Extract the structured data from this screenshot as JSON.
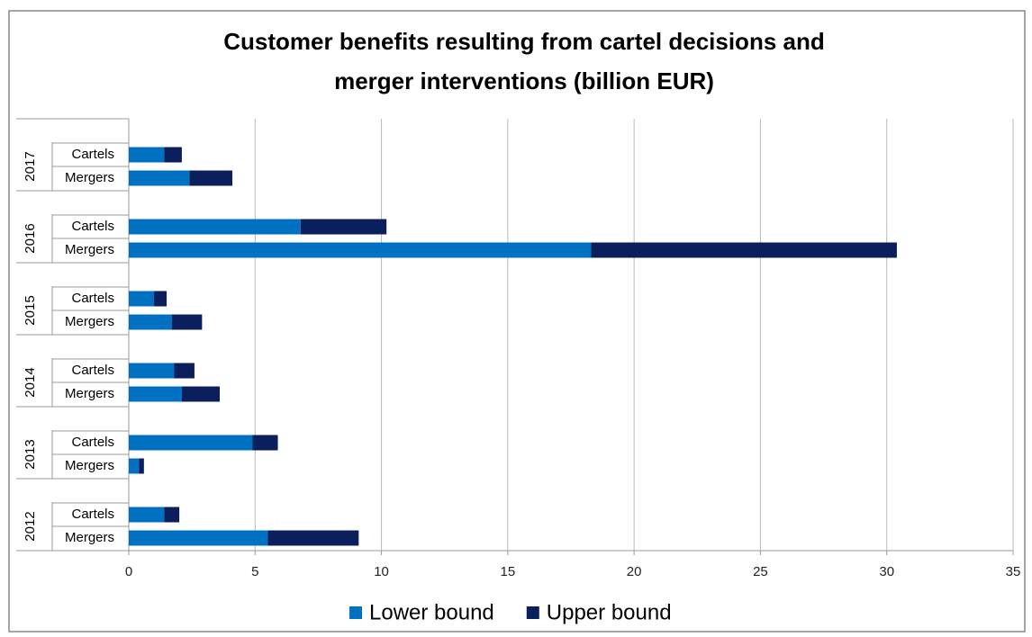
{
  "chart_data": {
    "type": "bar",
    "orientation": "horizontal",
    "stacked": true,
    "title": [
      "Customer benefits resulting from cartel decisions and",
      "merger interventions (billion EUR)"
    ],
    "groups": [
      "2017",
      "2016",
      "2015",
      "2014",
      "2013",
      "2012"
    ],
    "categories": [
      "Cartels",
      "Mergers",
      "Cartels",
      "Mergers",
      "Cartels",
      "Mergers",
      "Cartels",
      "Mergers",
      "Cartels",
      "Mergers",
      "Cartels",
      "Mergers"
    ],
    "series": [
      {
        "name": "Lower bound",
        "color": "#0070c0",
        "values": [
          1.4,
          2.4,
          6.8,
          18.3,
          1.0,
          1.7,
          1.8,
          2.1,
          4.9,
          0.4,
          1.4,
          5.5
        ]
      },
      {
        "name": "Upper bound",
        "color": "#0a1f5c",
        "values": [
          0.7,
          1.7,
          3.4,
          12.1,
          0.5,
          1.2,
          0.8,
          1.5,
          1.0,
          0.2,
          0.6,
          3.6
        ]
      }
    ],
    "xlim": [
      0,
      35
    ],
    "xticks": [
      0,
      5,
      10,
      15,
      20,
      25,
      30,
      35
    ],
    "grid": true,
    "legend": "bottom"
  }
}
